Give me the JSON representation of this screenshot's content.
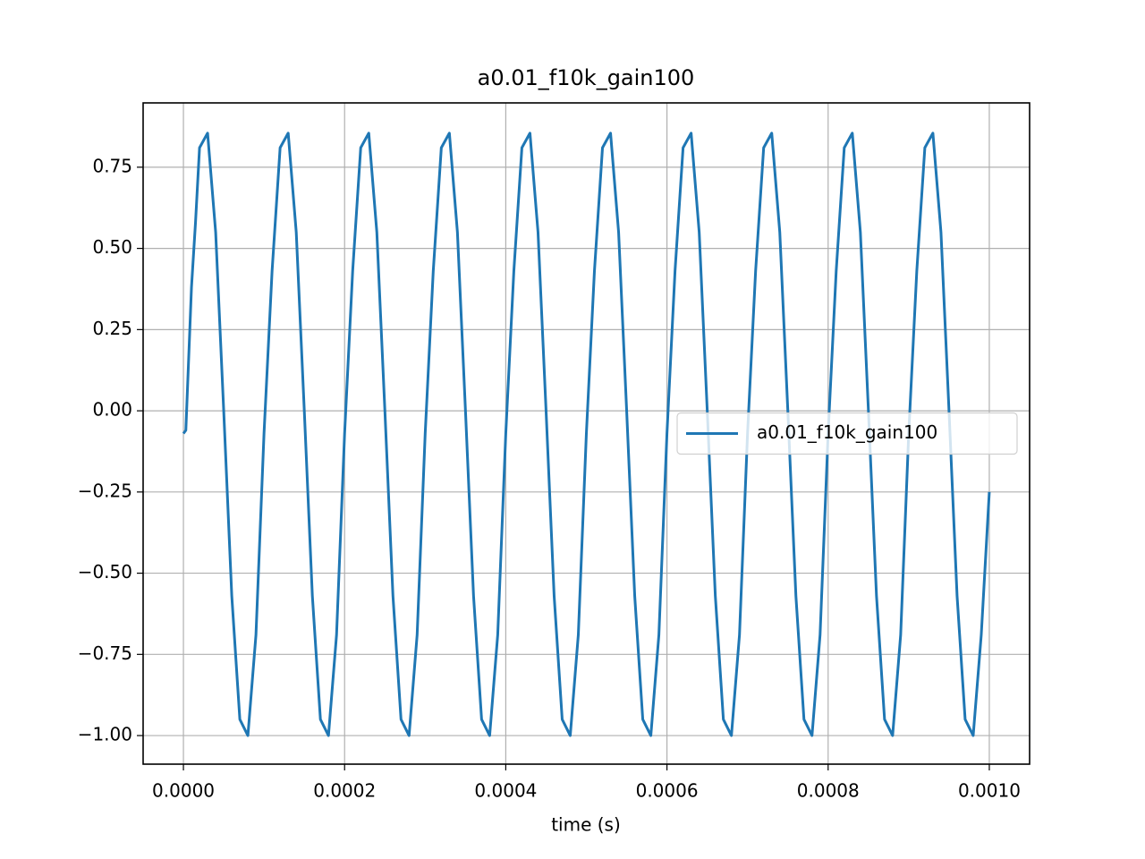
{
  "chart_data": {
    "type": "line",
    "title": "a0.01_f10k_gain100",
    "xlabel": "time (s)",
    "x": [
      0,
      3e-06,
      1e-05,
      1.5e-05,
      2e-05,
      3e-05,
      4e-05,
      5e-05,
      6e-05,
      7e-05,
      8e-05,
      9e-05,
      0.0001,
      0.00011,
      0.00012,
      0.00013,
      0.00014,
      0.00015,
      0.00016,
      0.00017,
      0.00018,
      0.00019,
      0.0002,
      0.00021,
      0.00022,
      0.00023,
      0.00024,
      0.00025,
      0.00026,
      0.00027,
      0.00028,
      0.00029,
      0.0003,
      0.00031,
      0.00032,
      0.00033,
      0.00034,
      0.00035,
      0.00036,
      0.00037,
      0.00038,
      0.00039,
      0.0004,
      0.00041,
      0.00042,
      0.00043,
      0.00044,
      0.00045,
      0.00046,
      0.00047,
      0.00048,
      0.00049,
      0.0005,
      0.00051,
      0.00052,
      0.00053,
      0.00054,
      0.00055,
      0.00056,
      0.00057,
      0.00058,
      0.00059,
      0.0006,
      0.00061,
      0.00062,
      0.00063,
      0.00064,
      0.00065,
      0.00066,
      0.00067,
      0.00068,
      0.00069,
      0.0007,
      0.00071,
      0.00072,
      0.00073,
      0.00074,
      0.00075,
      0.00076,
      0.00077,
      0.00078,
      0.00079,
      0.0008,
      0.00081,
      0.00082,
      0.00083,
      0.00084,
      0.00085,
      0.00086,
      0.00087,
      0.00088,
      0.00089,
      0.0009,
      0.00091,
      0.00092,
      0.00093,
      0.00094,
      0.00095,
      0.00096,
      0.00097,
      0.00098,
      0.00099,
      0.001
    ],
    "series": [
      {
        "name": "a0.01_f10k_gain100",
        "color": "#1f77b4",
        "values": [
          -0.07,
          -0.06,
          0.38,
          0.58,
          0.81,
          0.855,
          0.55,
          0.0,
          -0.57,
          -0.95,
          -1.0,
          -0.69,
          -0.07,
          0.43,
          0.81,
          0.855,
          0.55,
          0.0,
          -0.57,
          -0.95,
          -1.0,
          -0.69,
          -0.07,
          0.43,
          0.81,
          0.855,
          0.55,
          0.0,
          -0.57,
          -0.95,
          -1.0,
          -0.69,
          -0.07,
          0.43,
          0.81,
          0.855,
          0.55,
          0.0,
          -0.57,
          -0.95,
          -1.0,
          -0.69,
          -0.07,
          0.43,
          0.81,
          0.855,
          0.55,
          0.0,
          -0.57,
          -0.95,
          -1.0,
          -0.69,
          -0.07,
          0.43,
          0.81,
          0.855,
          0.55,
          0.0,
          -0.57,
          -0.95,
          -1.0,
          -0.69,
          -0.07,
          0.43,
          0.81,
          0.855,
          0.55,
          0.0,
          -0.57,
          -0.95,
          -1.0,
          -0.69,
          -0.07,
          0.43,
          0.81,
          0.855,
          0.55,
          0.0,
          -0.57,
          -0.95,
          -1.0,
          -0.69,
          -0.07,
          0.43,
          0.81,
          0.855,
          0.55,
          0.0,
          -0.57,
          -0.95,
          -1.0,
          -0.69,
          -0.07,
          0.43,
          0.81,
          0.855,
          0.55,
          0.0,
          -0.57,
          -0.95,
          -1.0,
          -0.69,
          -0.25
        ]
      }
    ],
    "xlim": [
      -5e-05,
      0.00105
    ],
    "xticks": [
      {
        "value": 0,
        "label": "0.0000"
      },
      {
        "value": 0.0002,
        "label": "0.0002"
      },
      {
        "value": 0.0004,
        "label": "0.0004"
      },
      {
        "value": 0.0006,
        "label": "0.0006"
      },
      {
        "value": 0.0008,
        "label": "0.0008"
      },
      {
        "value": 0.001,
        "label": "0.0010"
      }
    ],
    "ylim": [
      -1.088,
      0.948
    ],
    "yticks": [
      {
        "value": -1,
        "label": "−1.00"
      },
      {
        "value": -0.75,
        "label": "−0.75"
      },
      {
        "value": -0.5,
        "label": "−0.50"
      },
      {
        "value": -0.25,
        "label": "−0.25"
      },
      {
        "value": 0,
        "label": "0.00"
      },
      {
        "value": 0.25,
        "label": "0.25"
      },
      {
        "value": 0.5,
        "label": "0.50"
      },
      {
        "value": 0.75,
        "label": "0.75"
      }
    ],
    "grid": true,
    "legend": "center right"
  }
}
